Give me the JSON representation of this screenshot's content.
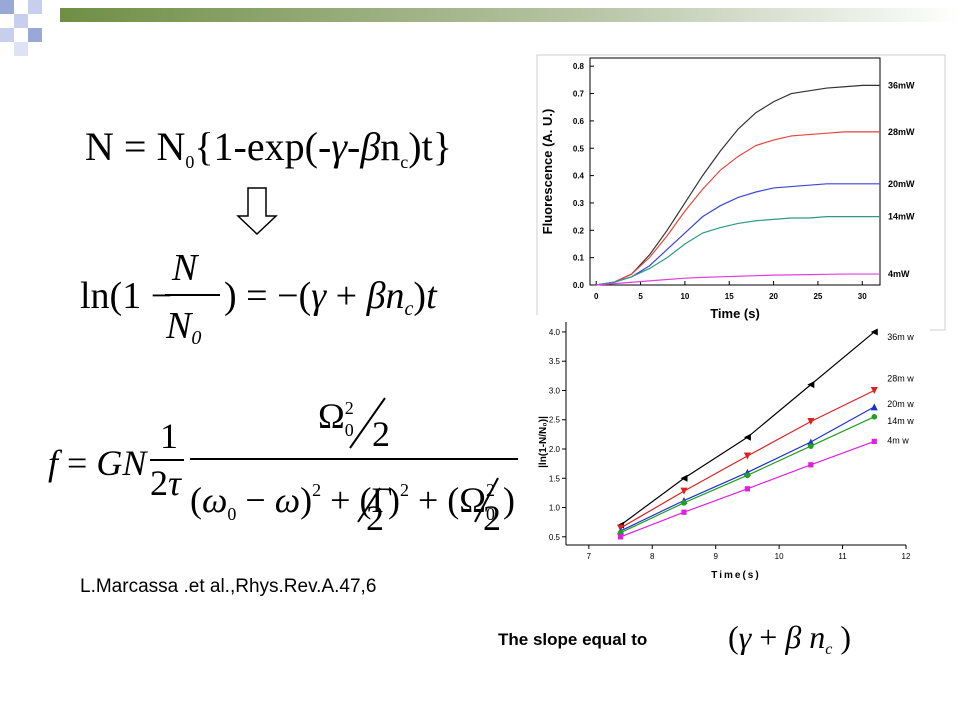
{
  "equations": {
    "eq1": [
      "N = N",
      "0",
      "{1-exp(-",
      "γ",
      "-",
      "β",
      "n",
      "c",
      ")t}"
    ],
    "eq2": [
      "ln(1 −",
      "N",
      "N",
      "0",
      ") = −(",
      "γ",
      " + ",
      "β",
      "n",
      "c",
      ")",
      "t"
    ],
    "eq3": [
      "f",
      " = ",
      "GN",
      "1",
      "2",
      "τ",
      "Ω",
      "0",
      "2",
      "2",
      "(",
      "ω",
      "0",
      " − ",
      "ω",
      ")",
      "2",
      " + (Γ",
      "2",
      ")",
      "2",
      " + (Ω",
      "0",
      "2",
      "2",
      ")"
    ]
  },
  "citation": "L.Marcassa .et al.,Rhys.Rev.A.47,6",
  "slope_text": "The slope equal to",
  "slope_expr": [
    "(",
    "γ",
    "  + ",
    "β",
    " n",
    "c",
    " )"
  ],
  "chart_data": [
    {
      "type": "line",
      "x_label": "Time (s)",
      "y_label": "Fluorescence (A. U.)",
      "xlim": [
        -0.7,
        32
      ],
      "ylim": [
        0,
        0.83
      ],
      "xticks": [
        0,
        5,
        10,
        15,
        20,
        25,
        30
      ],
      "yticks": [
        {
          "value": 0,
          "label": "0.0"
        },
        0.1,
        0.2,
        0.3,
        0.4,
        0.5,
        0.6,
        0.7,
        0.8
      ],
      "x": [
        0,
        2,
        4,
        6,
        8,
        10,
        12,
        14,
        16,
        18,
        20,
        22,
        24,
        26,
        28,
        30,
        32
      ],
      "series": [
        {
          "name": "36mW",
          "color": "#333333",
          "values": [
            0,
            0.01,
            0.04,
            0.11,
            0.2,
            0.3,
            0.4,
            0.49,
            0.57,
            0.63,
            0.67,
            0.7,
            0.71,
            0.72,
            0.725,
            0.73,
            0.73
          ]
        },
        {
          "name": "28mW",
          "color": "#e8453c",
          "values": [
            0,
            0.01,
            0.04,
            0.1,
            0.18,
            0.27,
            0.35,
            0.42,
            0.47,
            0.51,
            0.53,
            0.545,
            0.55,
            0.555,
            0.56,
            0.56,
            0.56
          ]
        },
        {
          "name": "20mW",
          "color": "#3a48d8",
          "values": [
            0,
            0.01,
            0.03,
            0.07,
            0.13,
            0.19,
            0.25,
            0.29,
            0.32,
            0.34,
            0.355,
            0.36,
            0.365,
            0.37,
            0.37,
            0.37,
            0.37
          ]
        },
        {
          "name": "14mW",
          "color": "#2a9a8a",
          "values": [
            0,
            0.01,
            0.03,
            0.06,
            0.1,
            0.15,
            0.19,
            0.21,
            0.225,
            0.235,
            0.24,
            0.245,
            0.245,
            0.25,
            0.25,
            0.25,
            0.25
          ]
        },
        {
          "name": "4mW",
          "color": "#e040e0",
          "values": [
            0,
            0.005,
            0.01,
            0.015,
            0.02,
            0.025,
            0.028,
            0.03,
            0.032,
            0.034,
            0.036,
            0.037,
            0.038,
            0.039,
            0.04,
            0.04,
            0.04
          ]
        }
      ]
    },
    {
      "type": "line",
      "x_label": "Time(s)",
      "y_label": "|ln(1-N/N₀)|",
      "xlim": [
        6.64,
        12
      ],
      "ylim": [
        0.36,
        4.17
      ],
      "xticks": [
        7,
        8,
        9,
        10,
        11,
        12
      ],
      "yticks": [
        0.5,
        {
          "value": 1,
          "label": "1.0"
        },
        1.5,
        {
          "value": 2,
          "label": "2.0"
        },
        2.5,
        {
          "value": 3,
          "label": "3.0"
        },
        3.5,
        {
          "value": 4,
          "label": "4.0"
        }
      ],
      "x": [
        7.5,
        8.5,
        9.5,
        10.5,
        11.5
      ],
      "series": [
        {
          "name": "36m w",
          "color": "#000000",
          "marker": "triangle-left",
          "values": [
            0.7,
            1.5,
            2.2,
            3.1,
            4.0
          ]
        },
        {
          "name": "28m w",
          "color": "#e02020",
          "marker": "triangle-down",
          "values": [
            0.65,
            1.28,
            1.88,
            2.47,
            3.0
          ]
        },
        {
          "name": "20m w",
          "color": "#2030d0",
          "marker": "triangle-up",
          "values": [
            0.6,
            1.12,
            1.6,
            2.12,
            2.72
          ]
        },
        {
          "name": "14m w",
          "color": "#20a020",
          "marker": "circle",
          "values": [
            0.57,
            1.08,
            1.55,
            2.05,
            2.55
          ]
        },
        {
          "name": "4m w",
          "color": "#e020e0",
          "marker": "square",
          "values": [
            0.5,
            0.92,
            1.32,
            1.73,
            2.13
          ]
        }
      ]
    }
  ]
}
